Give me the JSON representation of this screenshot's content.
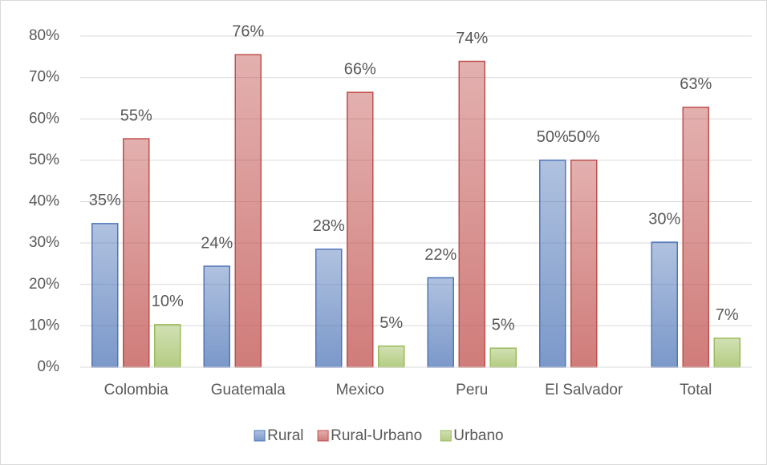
{
  "chart_data": {
    "type": "bar",
    "categories": [
      "Colombia",
      "Guatemala",
      "Mexico",
      "Peru",
      "El Salvador",
      "Total"
    ],
    "series": [
      {
        "name": "Rural",
        "color": "#4f76b8",
        "values": [
          34.7,
          24.4,
          28.5,
          21.6,
          50,
          30.2
        ],
        "value_labels": [
          "35%",
          "24%",
          "28%",
          "22%",
          "50%",
          "30%"
        ]
      },
      {
        "name": "Rural-Urbano",
        "color": "#c0504d",
        "values": [
          55.2,
          75.5,
          66.4,
          73.9,
          50,
          62.8
        ],
        "value_labels": [
          "55%",
          "76%",
          "66%",
          "74%",
          "50%",
          "63%"
        ]
      },
      {
        "name": "Urbano",
        "color": "#9bbb59",
        "values": [
          10.3,
          null,
          5.1,
          4.6,
          null,
          7.0
        ],
        "value_labels": [
          "10%",
          null,
          "5%",
          "5%",
          null,
          "7%"
        ]
      }
    ],
    "ylim": [
      0,
      80
    ],
    "yticks": [
      {
        "value": 0,
        "label": "0%"
      },
      {
        "value": 10,
        "label": "10%"
      },
      {
        "value": 20,
        "label": "20%"
      },
      {
        "value": 30,
        "label": "30%"
      },
      {
        "value": 40,
        "label": "40%"
      },
      {
        "value": 50,
        "label": "50%"
      },
      {
        "value": 60,
        "label": "60%"
      },
      {
        "value": 70,
        "label": "70%"
      },
      {
        "value": 80,
        "label": "80%"
      }
    ],
    "grid": true,
    "legend": "bottom"
  }
}
